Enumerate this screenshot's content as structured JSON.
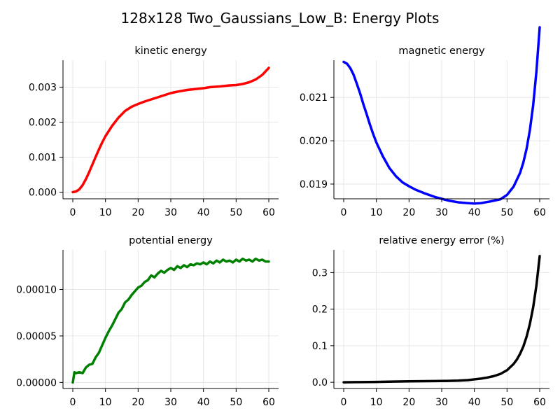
{
  "figure": {
    "title": "128x128 Two_Gaussians_Low_B: Energy Plots"
  },
  "chart_data": [
    {
      "type": "line",
      "title": "kinetic energy",
      "xlim": [
        -3,
        63
      ],
      "ylim": [
        -0.00019,
        0.00377
      ],
      "xticks": [
        0,
        10,
        20,
        30,
        40,
        50,
        60
      ],
      "yticks": [
        0.0,
        0.001,
        0.002,
        0.003
      ],
      "ytick_labels": [
        "0.000",
        "0.001",
        "0.002",
        "0.003"
      ],
      "grid": true,
      "color": "#ff0000",
      "x": [
        0,
        1,
        2,
        3,
        4,
        5,
        6,
        7,
        8,
        9,
        10,
        12,
        14,
        16,
        18,
        20,
        22,
        25,
        28,
        30,
        32,
        35,
        38,
        40,
        42,
        45,
        48,
        50,
        52,
        54,
        56,
        58,
        60
      ],
      "y": [
        0.0,
        2e-05,
        8e-05,
        0.0002,
        0.00037,
        0.00057,
        0.00079,
        0.00101,
        0.00122,
        0.00142,
        0.0016,
        0.00189,
        0.00213,
        0.00232,
        0.00244,
        0.00252,
        0.00259,
        0.00268,
        0.00277,
        0.00283,
        0.00287,
        0.00292,
        0.00295,
        0.00297,
        0.003,
        0.00302,
        0.00305,
        0.00306,
        0.00309,
        0.00314,
        0.00322,
        0.00335,
        0.00355
      ]
    },
    {
      "type": "line",
      "title": "magnetic energy",
      "xlim": [
        -3,
        63
      ],
      "ylim": [
        0.01866,
        0.02186
      ],
      "xticks": [
        0,
        10,
        20,
        30,
        40,
        50,
        60
      ],
      "yticks": [
        0.019,
        0.02,
        0.021
      ],
      "ytick_labels": [
        "0.019",
        "0.020",
        "0.021"
      ],
      "grid": true,
      "color": "#0000ff",
      "x": [
        0,
        1,
        2,
        3,
        4,
        5,
        6,
        7,
        8,
        9,
        10,
        12,
        14,
        16,
        18,
        20,
        22,
        25,
        28,
        30,
        32,
        35,
        38,
        40,
        42,
        45,
        48,
        50,
        52,
        54,
        55,
        56,
        57,
        58,
        59,
        60
      ],
      "y": [
        0.02182,
        0.02178,
        0.02168,
        0.02153,
        0.02132,
        0.0211,
        0.02085,
        0.02062,
        0.02038,
        0.02016,
        0.01996,
        0.01964,
        0.01937,
        0.01918,
        0.01904,
        0.01895,
        0.01887,
        0.01878,
        0.0187,
        0.01866,
        0.01862,
        0.01858,
        0.01856,
        0.01855,
        0.01856,
        0.0186,
        0.01865,
        0.01875,
        0.01894,
        0.01926,
        0.0195,
        0.01982,
        0.02025,
        0.02082,
        0.0216,
        0.02262
      ]
    },
    {
      "type": "line",
      "title": "potential energy",
      "xlim": [
        -3,
        63
      ],
      "ylim": [
        -6.5e-06,
        0.0001425
      ],
      "xticks": [
        0,
        10,
        20,
        30,
        40,
        50,
        60
      ],
      "yticks": [
        0.0,
        5e-05,
        0.0001
      ],
      "ytick_labels": [
        "0.00000",
        "0.00005",
        "0.00010"
      ],
      "grid": true,
      "color": "#008000",
      "x": [
        0,
        0.5,
        1,
        2,
        3,
        4,
        5,
        6,
        7,
        8,
        9,
        10,
        11,
        12,
        13,
        14,
        15,
        16,
        17,
        18,
        19,
        20,
        21,
        22,
        23,
        24,
        25,
        26,
        27,
        28,
        29,
        30,
        31,
        32,
        33,
        34,
        35,
        36,
        37,
        38,
        39,
        40,
        41,
        42,
        43,
        44,
        45,
        46,
        47,
        48,
        49,
        50,
        51,
        52,
        53,
        54,
        55,
        56,
        57,
        58,
        59,
        60
      ],
      "y": [
        0.0,
        1.1e-05,
        1e-05,
        1.1e-05,
        1e-05,
        1.6e-05,
        1.9e-05,
        2e-05,
        2.7e-05,
        3.2e-05,
        4e-05,
        4.8e-05,
        5.5e-05,
        6.1e-05,
        6.8e-05,
        7.5e-05,
        7.9e-05,
        8.6e-05,
        8.9e-05,
        9.4e-05,
        9.8e-05,
        0.000102,
        0.000104,
        0.000108,
        0.00011,
        0.000115,
        0.000113,
        0.000117,
        0.00012,
        0.000118,
        0.000121,
        0.000123,
        0.000121,
        0.000125,
        0.000123,
        0.000126,
        0.000124,
        0.000127,
        0.000126,
        0.000128,
        0.000127,
        0.000129,
        0.000127,
        0.00013,
        0.000128,
        0.000131,
        0.000129,
        0.000132,
        0.00013,
        0.000131,
        0.000129,
        0.000132,
        0.00013,
        0.000133,
        0.000131,
        0.000132,
        0.00013,
        0.000133,
        0.000131,
        0.000132,
        0.00013,
        0.00013
      ]
    },
    {
      "type": "line",
      "title": "relative energy error (%)",
      "xlim": [
        -3,
        63
      ],
      "ylim": [
        -0.017,
        0.362
      ],
      "xticks": [
        0,
        10,
        20,
        30,
        40,
        50,
        60
      ],
      "yticks": [
        0.0,
        0.1,
        0.2,
        0.3
      ],
      "ytick_labels": [
        "0.0",
        "0.1",
        "0.2",
        "0.3"
      ],
      "grid": true,
      "color": "#000000",
      "x": [
        0,
        5,
        10,
        15,
        20,
        25,
        30,
        35,
        38,
        40,
        42,
        44,
        46,
        48,
        50,
        52,
        53,
        54,
        55,
        56,
        57,
        58,
        59,
        60
      ],
      "y": [
        0.0,
        0.0005,
        0.001,
        0.002,
        0.0025,
        0.003,
        0.0035,
        0.0045,
        0.006,
        0.008,
        0.01,
        0.013,
        0.017,
        0.023,
        0.033,
        0.05,
        0.062,
        0.078,
        0.098,
        0.125,
        0.16,
        0.205,
        0.265,
        0.345
      ]
    }
  ]
}
